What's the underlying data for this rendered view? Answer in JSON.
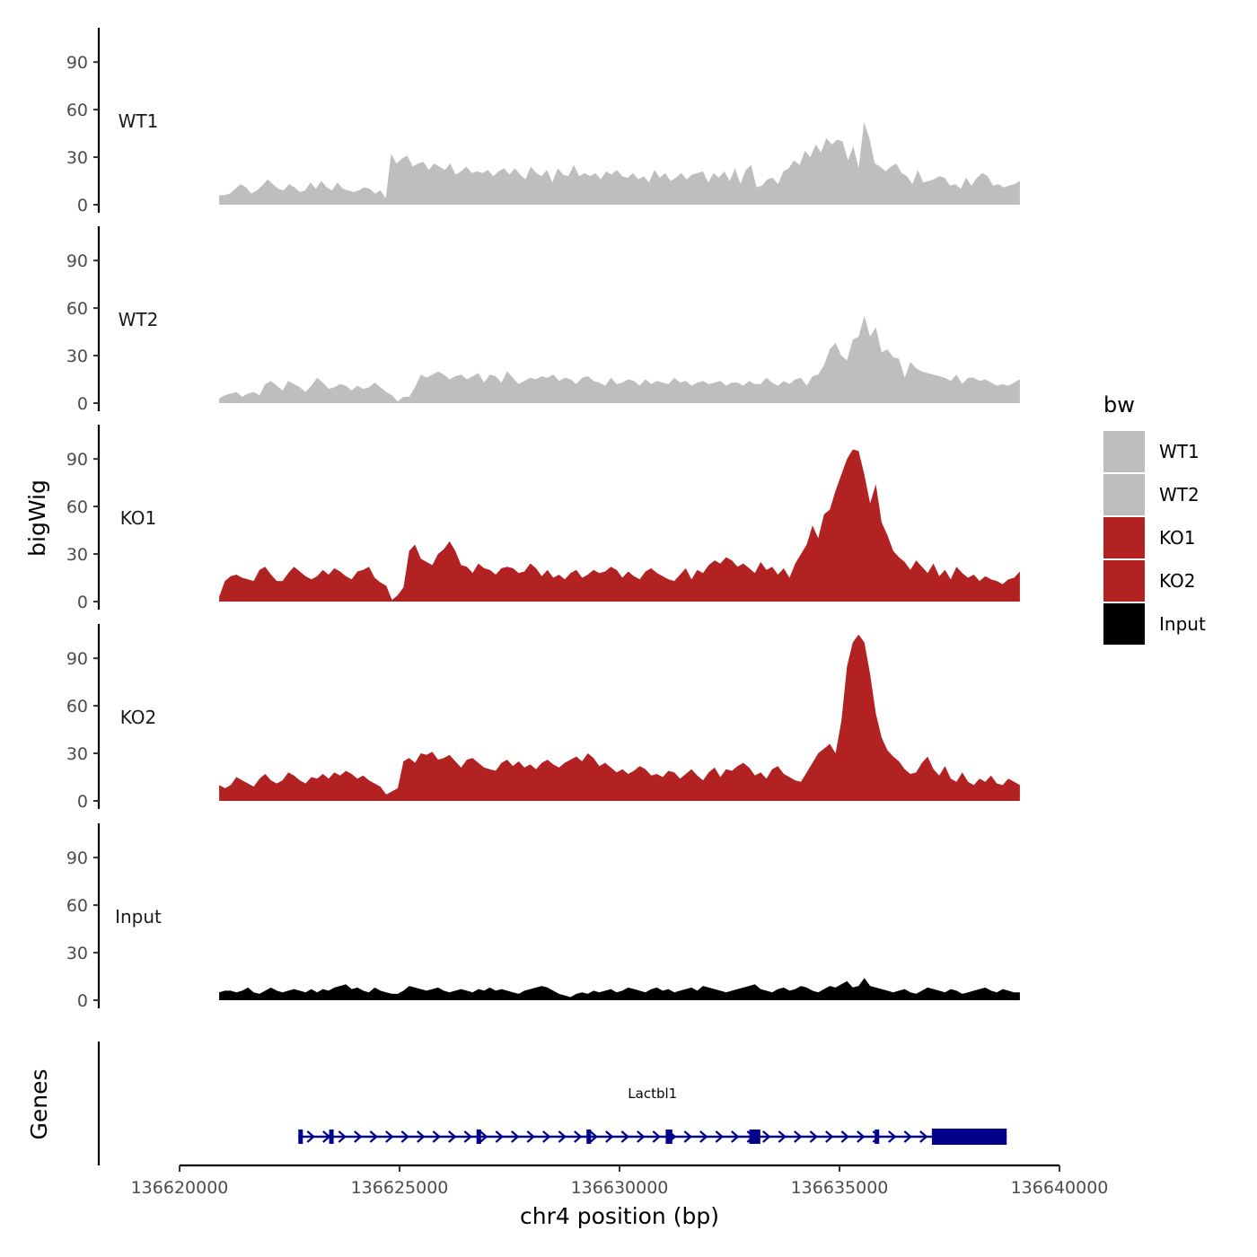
{
  "chart_data": {
    "type": "area",
    "ylabel": "bigWig",
    "xlabel": "chr4 position (bp)",
    "xlim": [
      136620000,
      136640000
    ],
    "ylim": [
      0,
      110
    ],
    "y_ticks": [
      0,
      30,
      60,
      90
    ],
    "x_ticks": [
      136620000,
      136625000,
      136630000,
      136635000,
      136640000
    ],
    "x_tick_labels": [
      "136620000",
      "136625000",
      "136630000",
      "136635000",
      "136640000"
    ],
    "track_range": [
      136620900,
      136639100
    ],
    "legend": {
      "title": "bw",
      "position": "right",
      "items": [
        {
          "label": "WT1",
          "color": "#bebebe"
        },
        {
          "label": "WT2",
          "color": "#bebebe"
        },
        {
          "label": "KO1",
          "color": "#b22222"
        },
        {
          "label": "KO2",
          "color": "#b22222"
        },
        {
          "label": "Input",
          "color": "#000000"
        }
      ]
    },
    "series": [
      {
        "name": "WT1",
        "color": "#bebebe",
        "values": [
          6,
          6,
          7,
          10,
          13,
          11,
          7,
          9,
          12,
          16,
          13,
          10,
          9,
          13,
          11,
          8,
          9,
          14,
          10,
          15,
          11,
          9,
          14,
          10,
          9,
          8,
          9,
          11,
          10,
          7,
          9,
          4,
          32,
          26,
          29,
          31,
          24,
          26,
          27,
          22,
          26,
          24,
          22,
          26,
          19,
          21,
          24,
          20,
          21,
          20,
          22,
          18,
          21,
          23,
          19,
          23,
          19,
          16,
          24,
          20,
          18,
          22,
          14,
          23,
          19,
          18,
          25,
          18,
          20,
          18,
          20,
          16,
          21,
          19,
          22,
          18,
          17,
          20,
          16,
          18,
          14,
          22,
          17,
          20,
          15,
          17,
          20,
          16,
          19,
          20,
          21,
          14,
          20,
          17,
          21,
          15,
          23,
          13,
          22,
          25,
          11,
          12,
          16,
          17,
          13,
          21,
          23,
          28,
          25,
          34,
          30,
          38,
          33,
          42,
          38,
          41,
          40,
          28,
          37,
          23,
          52,
          42,
          26,
          24,
          21,
          24,
          26,
          20,
          18,
          13,
          22,
          14,
          15,
          16,
          18,
          17,
          12,
          13,
          10,
          17,
          12,
          17,
          20,
          18,
          12,
          13,
          11,
          12,
          13,
          15
        ]
      },
      {
        "name": "WT2",
        "color": "#bebebe",
        "values": [
          3,
          5,
          6,
          7,
          4,
          6,
          7,
          5,
          12,
          14,
          11,
          8,
          14,
          12,
          10,
          7,
          11,
          16,
          13,
          9,
          10,
          12,
          11,
          8,
          11,
          9,
          10,
          13,
          10,
          7,
          5,
          1,
          4,
          4,
          10,
          18,
          16,
          18,
          20,
          18,
          15,
          17,
          18,
          15,
          17,
          19,
          13,
          18,
          17,
          13,
          20,
          16,
          12,
          14,
          16,
          15,
          17,
          16,
          18,
          14,
          16,
          15,
          12,
          16,
          17,
          14,
          13,
          11,
          16,
          12,
          13,
          15,
          14,
          11,
          15,
          12,
          14,
          13,
          12,
          16,
          13,
          14,
          11,
          13,
          14,
          12,
          13,
          14,
          11,
          13,
          13,
          11,
          14,
          12,
          12,
          16,
          13,
          11,
          14,
          12,
          15,
          16,
          11,
          17,
          18,
          24,
          34,
          38,
          30,
          27,
          40,
          42,
          55,
          42,
          48,
          32,
          34,
          29,
          28,
          16,
          26,
          22,
          20,
          19,
          18,
          17,
          16,
          14,
          18,
          12,
          16,
          16,
          14,
          15,
          13,
          11,
          12,
          11,
          13,
          15
        ]
      },
      {
        "name": "KO1",
        "color": "#b22222",
        "values": [
          3,
          13,
          16,
          17,
          15,
          14,
          13,
          20,
          22,
          17,
          13,
          13,
          18,
          22,
          19,
          16,
          14,
          16,
          20,
          17,
          21,
          19,
          16,
          14,
          19,
          20,
          22,
          15,
          12,
          10,
          1,
          4,
          9,
          32,
          36,
          27,
          25,
          23,
          30,
          33,
          38,
          32,
          23,
          22,
          18,
          24,
          21,
          20,
          17,
          21,
          22,
          21,
          18,
          19,
          24,
          21,
          16,
          20,
          15,
          17,
          14,
          18,
          20,
          15,
          17,
          20,
          18,
          19,
          22,
          20,
          15,
          19,
          16,
          14,
          19,
          21,
          18,
          16,
          14,
          13,
          17,
          21,
          14,
          20,
          18,
          23,
          26,
          24,
          28,
          26,
          22,
          24,
          21,
          18,
          25,
          20,
          22,
          17,
          21,
          15,
          24,
          30,
          36,
          48,
          40,
          55,
          58,
          70,
          80,
          90,
          96,
          95,
          80,
          62,
          74,
          50,
          42,
          32,
          28,
          25,
          20,
          26,
          22,
          18,
          24,
          16,
          20,
          14,
          22,
          18,
          15,
          17,
          13,
          16,
          14,
          13,
          11,
          14,
          15,
          19
        ]
      },
      {
        "name": "KO2",
        "color": "#b22222",
        "values": [
          10,
          8,
          10,
          15,
          13,
          11,
          9,
          14,
          17,
          13,
          11,
          13,
          18,
          16,
          13,
          11,
          15,
          14,
          17,
          14,
          18,
          16,
          19,
          17,
          14,
          16,
          13,
          11,
          9,
          4,
          6,
          8,
          25,
          27,
          24,
          30,
          29,
          31,
          26,
          27,
          29,
          25,
          21,
          26,
          27,
          24,
          21,
          20,
          19,
          24,
          26,
          22,
          25,
          21,
          23,
          20,
          24,
          26,
          23,
          21,
          24,
          26,
          28,
          25,
          30,
          27,
          22,
          24,
          21,
          18,
          20,
          17,
          19,
          22,
          20,
          16,
          17,
          15,
          19,
          18,
          14,
          17,
          20,
          16,
          13,
          18,
          21,
          15,
          20,
          19,
          22,
          24,
          21,
          16,
          18,
          14,
          20,
          22,
          17,
          15,
          13,
          12,
          18,
          24,
          30,
          33,
          36,
          30,
          50,
          85,
          100,
          105,
          100,
          80,
          55,
          40,
          32,
          28,
          25,
          20,
          17,
          18,
          24,
          28,
          20,
          16,
          22,
          14,
          12,
          18,
          12,
          10,
          14,
          12,
          16,
          11,
          10,
          14,
          12,
          10
        ]
      },
      {
        "name": "Input",
        "color": "#000000",
        "values": [
          5,
          6,
          6,
          5,
          6,
          8,
          5,
          4,
          6,
          8,
          6,
          5,
          6,
          7,
          6,
          5,
          7,
          5,
          7,
          6,
          8,
          9,
          10,
          7,
          8,
          6,
          5,
          8,
          6,
          5,
          4,
          4,
          6,
          9,
          8,
          7,
          6,
          7,
          8,
          6,
          5,
          6,
          7,
          6,
          5,
          7,
          6,
          8,
          6,
          7,
          6,
          5,
          4,
          6,
          7,
          8,
          9,
          8,
          6,
          4,
          3,
          2,
          4,
          5,
          4,
          6,
          5,
          6,
          7,
          5,
          6,
          8,
          7,
          6,
          5,
          7,
          8,
          6,
          7,
          5,
          6,
          7,
          8,
          6,
          9,
          8,
          7,
          6,
          5,
          6,
          7,
          8,
          9,
          10,
          7,
          6,
          5,
          7,
          8,
          6,
          7,
          9,
          8,
          6,
          5,
          7,
          9,
          8,
          10,
          12,
          8,
          9,
          14,
          9,
          8,
          7,
          6,
          5,
          6,
          7,
          5,
          4,
          6,
          8,
          7,
          6,
          5,
          7,
          6,
          4,
          5,
          6,
          7,
          8,
          6,
          5,
          7,
          6,
          5,
          5
        ]
      }
    ],
    "gene_track": {
      "ylabel": "Genes",
      "gene": "Lactbl1",
      "strand": "+",
      "color": "#00008b",
      "start": 136622700,
      "end": 136638800,
      "exons": [
        [
          136622700,
          136622800
        ],
        [
          136623400,
          136623450
        ],
        [
          136626750,
          136626850
        ],
        [
          136629250,
          136629350
        ],
        [
          136631050,
          136631200
        ],
        [
          136632950,
          136633200
        ],
        [
          136635800,
          136635900
        ],
        [
          136637100,
          136638800
        ]
      ]
    }
  }
}
